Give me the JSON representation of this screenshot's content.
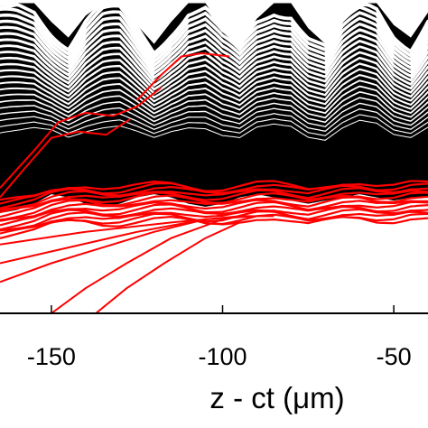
{
  "chart_data": {
    "type": "line",
    "xlabel": "z - ct (μm)",
    "xlim": [
      -165,
      -40
    ],
    "ylim": [
      0,
      1
    ],
    "x_ticks": [
      -150,
      -100,
      -50
    ],
    "x_tick_labels": [
      "-150",
      "-100",
      "-50"
    ],
    "grid": false,
    "legend": "none",
    "colors": {
      "background": "#ffffff",
      "black_trajectories": "#000000",
      "white_separators": "#ffffff",
      "red_trajectories": "#ff0000",
      "axis": "#000000"
    },
    "series": [
      {
        "color": "black",
        "band_y_range": [
          0.32,
          1.0
        ],
        "x": [
          -165,
          -160,
          -155,
          -150,
          -145,
          -140,
          -135,
          -130,
          -125,
          -120,
          -115,
          -110,
          -105,
          -100,
          -95,
          -90,
          -85,
          -80,
          -75,
          -70,
          -65,
          -60,
          -55,
          -50,
          -45,
          -40
        ],
        "top_boundary": [
          0.98,
          0.99,
          0.99,
          0.93,
          0.88,
          0.95,
          0.99,
          0.99,
          0.92,
          0.86,
          0.93,
          0.99,
          0.99,
          0.91,
          0.86,
          0.94,
          0.99,
          0.99,
          0.91,
          0.86,
          0.94,
          0.99,
          0.99,
          0.92,
          0.88,
          0.96
        ],
        "bottom_boundary": [
          0.32,
          0.33,
          0.35,
          0.38,
          0.37,
          0.35,
          0.34,
          0.35,
          0.37,
          0.38,
          0.37,
          0.35,
          0.34,
          0.35,
          0.37,
          0.38,
          0.37,
          0.36,
          0.35,
          0.36,
          0.37,
          0.38,
          0.37,
          0.36,
          0.37,
          0.37
        ]
      },
      {
        "color": "red",
        "band_y_range": [
          0.28,
          0.42
        ],
        "x": [
          -165,
          -160,
          -155,
          -150,
          -145,
          -140,
          -135,
          -130,
          -125,
          -120,
          -115,
          -110,
          -105,
          -100,
          -95,
          -90,
          -85,
          -80,
          -75,
          -70,
          -65,
          -60,
          -55,
          -50,
          -45,
          -40
        ],
        "center": [
          0.3,
          0.31,
          0.32,
          0.34,
          0.35,
          0.35,
          0.34,
          0.34,
          0.35,
          0.36,
          0.36,
          0.35,
          0.34,
          0.34,
          0.35,
          0.36,
          0.36,
          0.35,
          0.34,
          0.35,
          0.36,
          0.36,
          0.35,
          0.35,
          0.36,
          0.36
        ]
      }
    ]
  }
}
